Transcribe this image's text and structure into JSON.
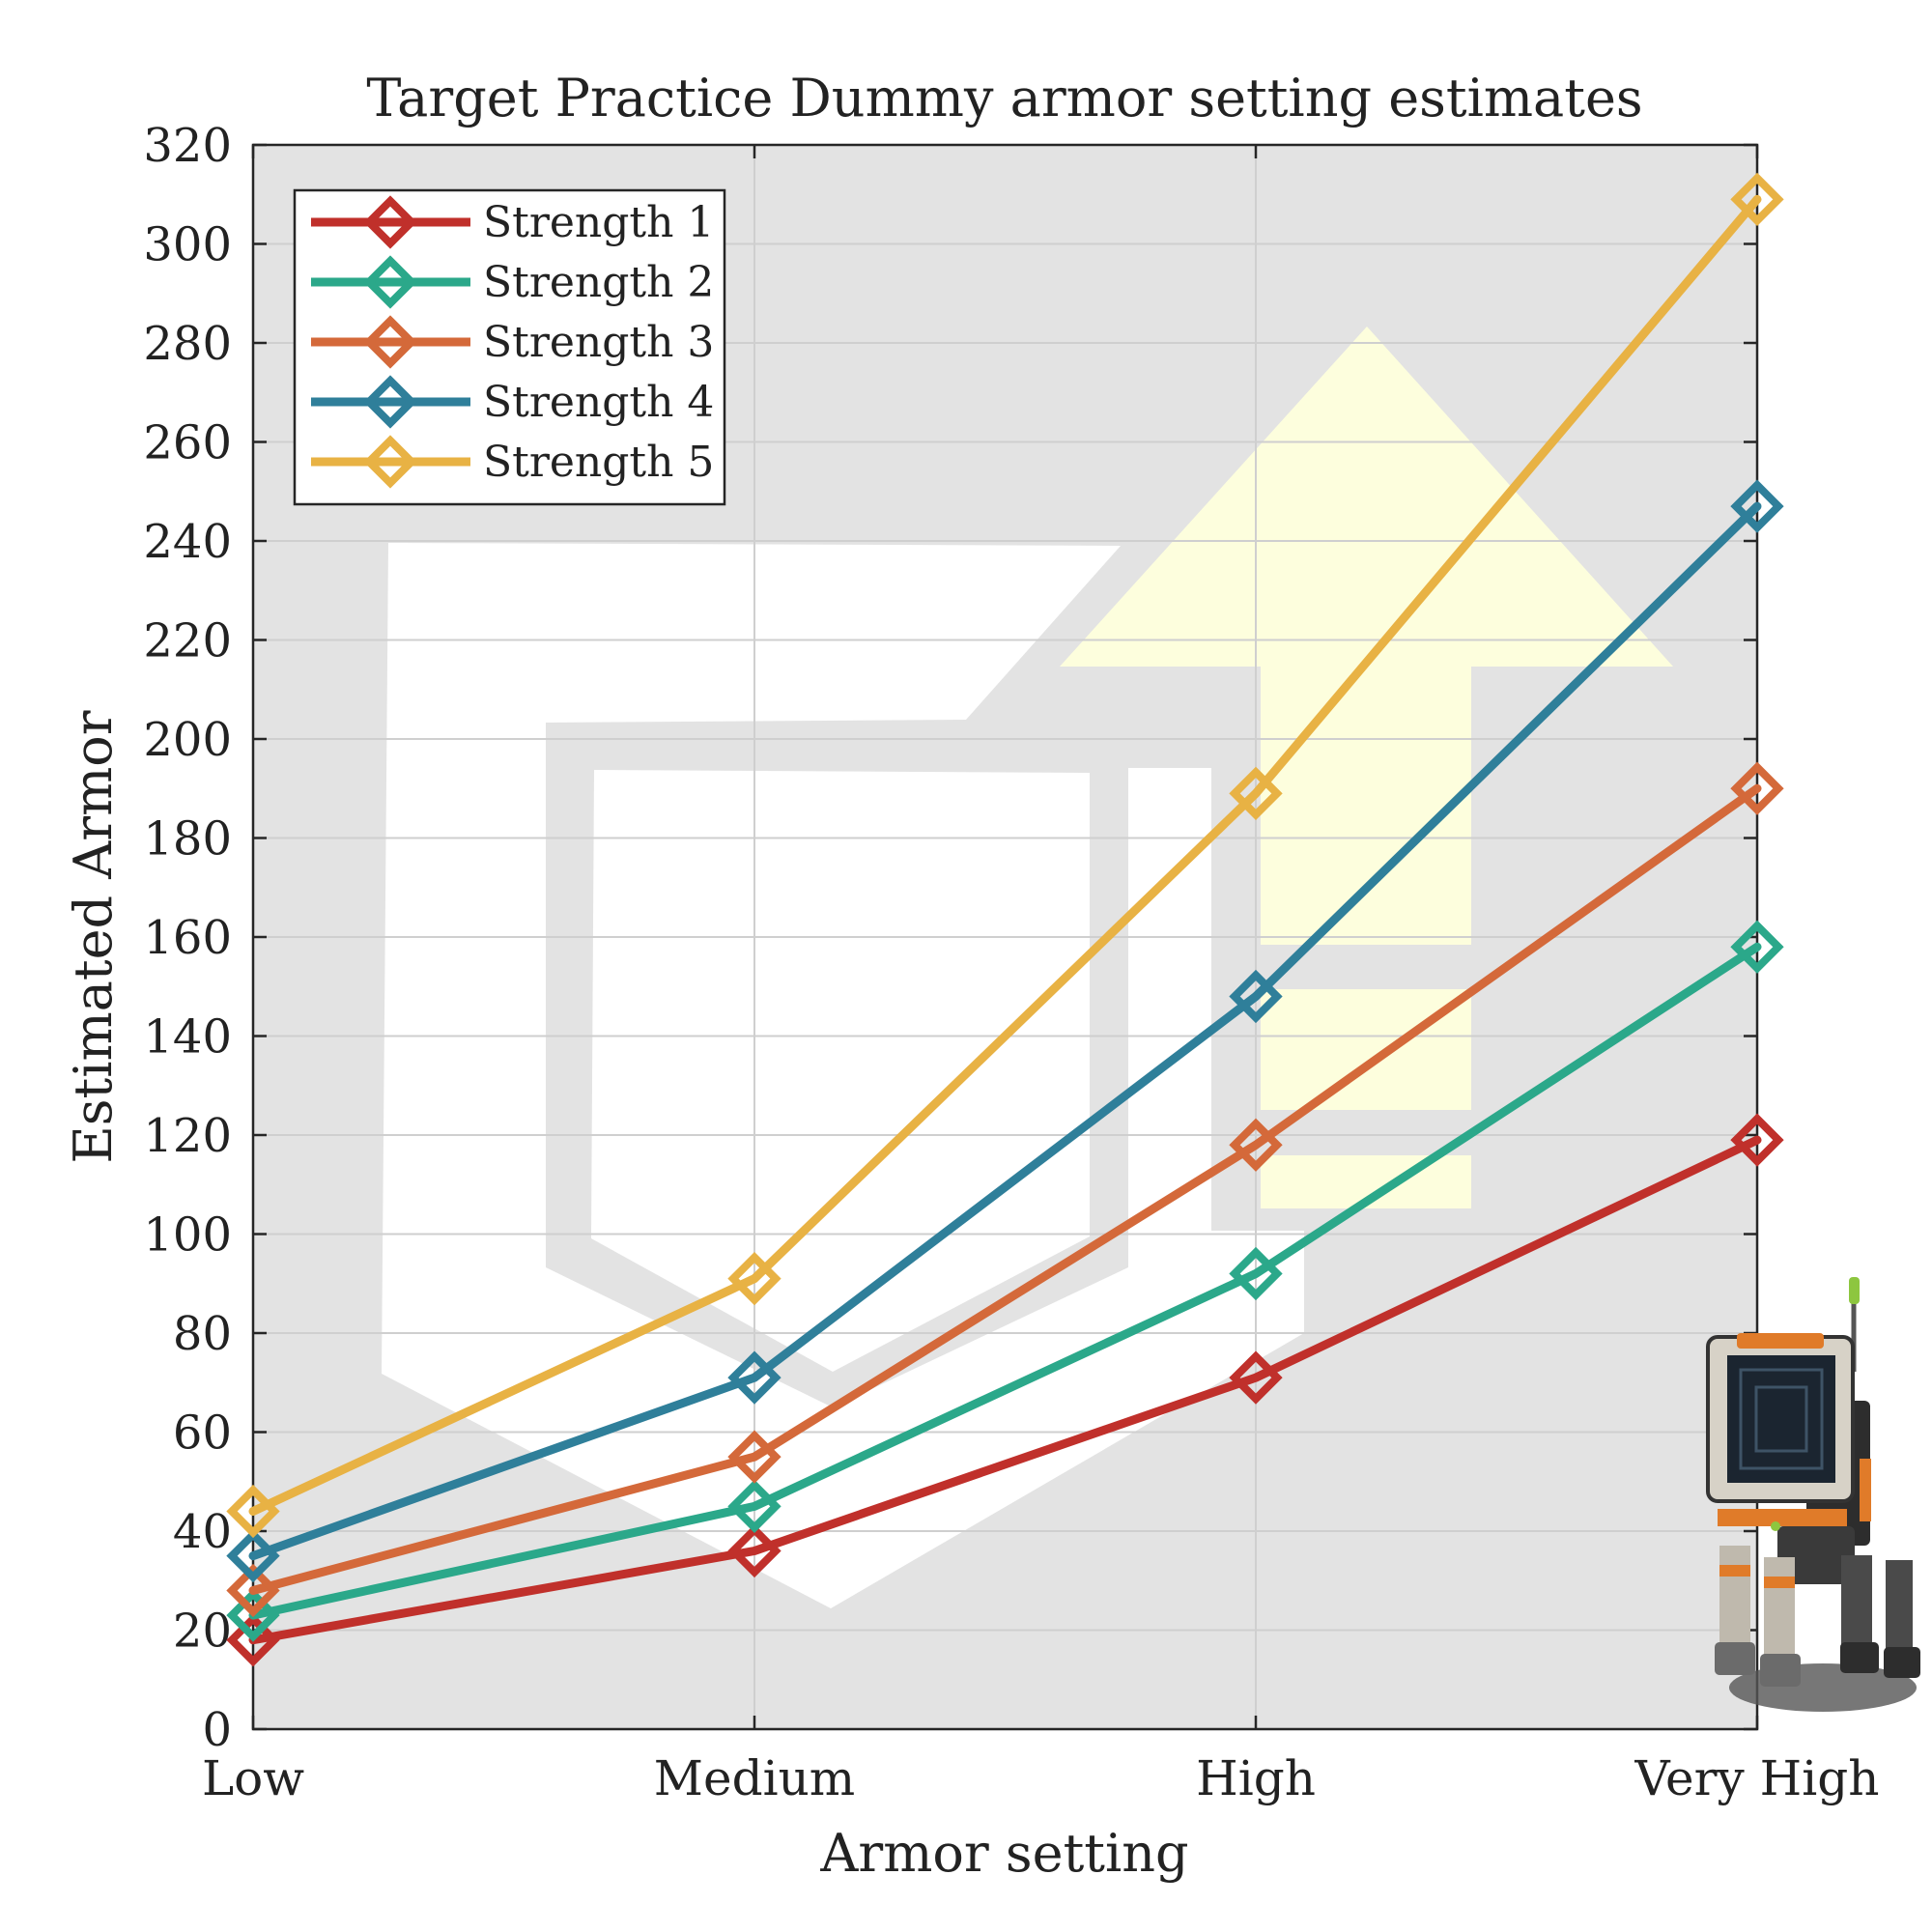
{
  "chart_data": {
    "type": "line",
    "title": "Target Practice Dummy armor setting estimates",
    "xlabel": "Armor setting",
    "ylabel": "Estimated Armor",
    "categories": [
      "Low",
      "Medium",
      "High",
      "Very High"
    ],
    "ylim": [
      0,
      320
    ],
    "yticks": [
      "0",
      "20",
      "40",
      "60",
      "80",
      "100",
      "120",
      "140",
      "160",
      "180",
      "200",
      "220",
      "240",
      "260",
      "280",
      "300",
      "320"
    ],
    "grid": true,
    "legend_position": "top-left",
    "marker": "diamond",
    "series": [
      {
        "name": "Strength 1",
        "color": "#c0302b",
        "values": [
          18,
          36,
          71,
          119
        ]
      },
      {
        "name": "Strength 2",
        "color": "#2ba88a",
        "values": [
          23,
          45,
          92,
          158
        ]
      },
      {
        "name": "Strength 3",
        "color": "#d4693a",
        "values": [
          28,
          55,
          118,
          190
        ]
      },
      {
        "name": "Strength 4",
        "color": "#2f7f9a",
        "values": [
          35,
          71,
          148,
          247
        ]
      },
      {
        "name": "Strength 5",
        "color": "#e8b244",
        "values": [
          44,
          91,
          189,
          309
        ]
      }
    ],
    "background_color": "#e3e3e3",
    "watermark_icon": "armor-upgrade-icon",
    "mascot_icon": "target-dummy-robot-icon"
  }
}
